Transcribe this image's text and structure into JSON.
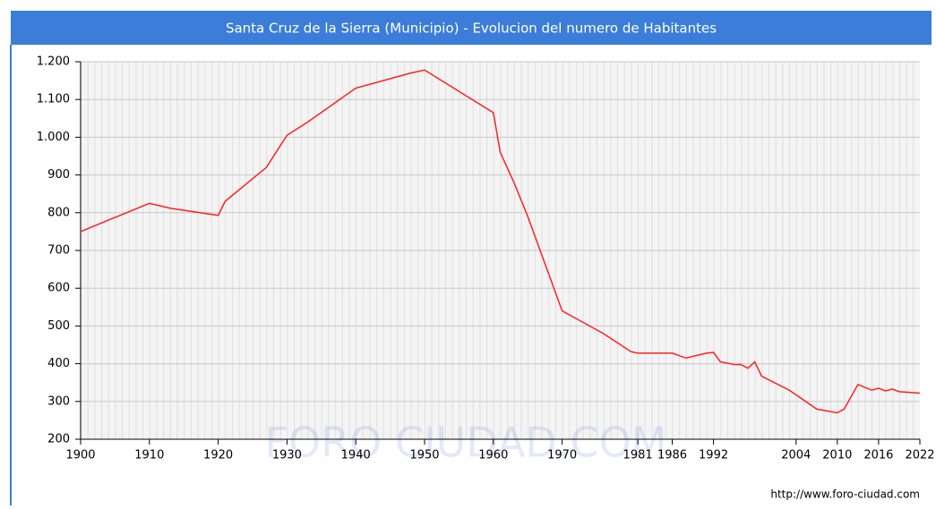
{
  "chart_data": {
    "type": "line",
    "title": "Santa Cruz de la Sierra (Municipio) - Evolucion del numero de Habitantes",
    "watermark": "FORO CIUDAD.COM",
    "source": "http://www.foro-ciudad.com",
    "x": [
      1900,
      1910,
      1913,
      1920,
      1921,
      1925,
      1927,
      1930,
      1933,
      1940,
      1945,
      1948,
      1950,
      1960,
      1961,
      1963,
      1965,
      1970,
      1976,
      1980,
      1981,
      1986,
      1988,
      1991,
      1992,
      1993,
      1995,
      1996,
      1997,
      1998,
      1999,
      2003,
      2007,
      2010,
      2011,
      2013,
      2015,
      2016,
      2017,
      2018,
      2019,
      2022
    ],
    "series": [
      {
        "name": "Habitantes",
        "color": "#ff2020",
        "values": [
          750,
          825,
          812,
          793,
          830,
          890,
          920,
          1005,
          1040,
          1130,
          1155,
          1170,
          1178,
          1065,
          960,
          880,
          790,
          540,
          480,
          432,
          428,
          428,
          415,
          428,
          430,
          405,
          398,
          398,
          388,
          405,
          367,
          330,
          280,
          270,
          280,
          345,
          330,
          335,
          328,
          333,
          326,
          322
        ]
      }
    ],
    "xlim": [
      1900,
      2022
    ],
    "xticks": [
      1900,
      1910,
      1920,
      1930,
      1940,
      1950,
      1960,
      1970,
      1981,
      1986,
      1992,
      2004,
      2010,
      2016,
      2022
    ],
    "ylim": [
      200,
      1200
    ],
    "yticks": [
      200,
      300,
      400,
      500,
      600,
      700,
      800,
      900,
      {
        "value": 1000,
        "label": "1.000"
      },
      {
        "value": 1100,
        "label": "1.100"
      },
      {
        "value": 1200,
        "label": "1.200"
      }
    ],
    "grid": true
  }
}
